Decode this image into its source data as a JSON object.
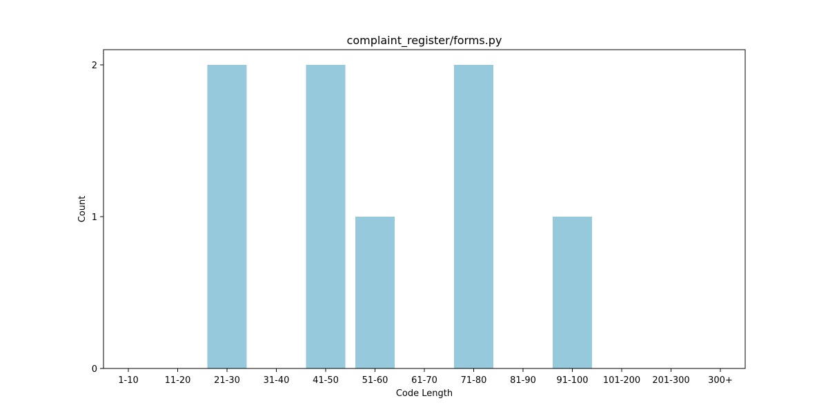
{
  "chart_data": {
    "type": "bar",
    "title": "complaint_register/forms.py",
    "xlabel": "Code Length",
    "ylabel": "Count",
    "categories": [
      "1-10",
      "11-20",
      "21-30",
      "31-40",
      "41-50",
      "51-60",
      "61-70",
      "71-80",
      "81-90",
      "91-100",
      "101-200",
      "201-300",
      "300+"
    ],
    "values": [
      0,
      0,
      2,
      0,
      2,
      1,
      0,
      2,
      0,
      1,
      0,
      0,
      0
    ],
    "yticks": [
      "0",
      "1",
      "2"
    ],
    "ylim": [
      0,
      2.1
    ],
    "grid": false,
    "bar_color": "#96c9dc"
  }
}
